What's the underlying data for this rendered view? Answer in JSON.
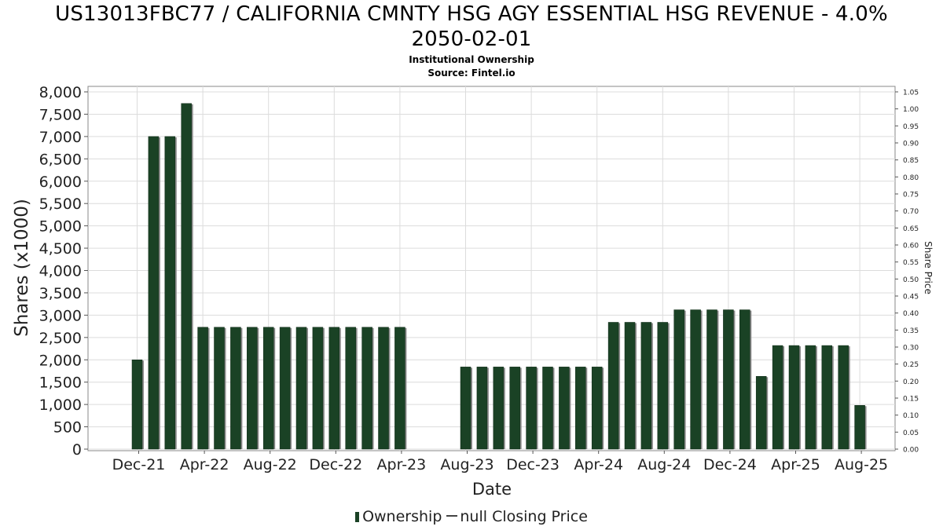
{
  "title_line1": "US13013FBC77 / CALIFORNIA CMNTY HSG AGY ESSENTIAL HSG REVENUE - 4.0%",
  "title_line2": "2050-02-01",
  "subtitle": "Institutional Ownership",
  "source": "Source: Fintel.io",
  "legend": {
    "ownership": "Ownership",
    "closing_price": "null Closing Price"
  },
  "colors": {
    "bar": "#1a4225",
    "bar_shadow": "#8c8c8c",
    "grid": "#dcdcdc"
  },
  "chart_data": {
    "type": "bar",
    "xlabel": "Date",
    "ylabel": "Shares (x1000)",
    "y2label": "Share Price",
    "ylim": [
      0,
      8000
    ],
    "y_ticks": [
      "0",
      "500",
      "1,000",
      "1,500",
      "2,000",
      "2,500",
      "3,000",
      "3,500",
      "4,000",
      "4,500",
      "5,000",
      "5,500",
      "6,000",
      "6,500",
      "7,000",
      "7,500",
      "8,000"
    ],
    "y2lim": [
      0,
      1.05
    ],
    "y2_ticks": [
      "0.00",
      "0.05",
      "0.10",
      "0.15",
      "0.20",
      "0.25",
      "0.30",
      "0.35",
      "0.40",
      "0.45",
      "0.50",
      "0.55",
      "0.60",
      "0.65",
      "0.70",
      "0.75",
      "0.80",
      "0.85",
      "0.90",
      "0.95",
      "1.00",
      "1.05"
    ],
    "x_ticks": [
      "Dec-21",
      "Apr-22",
      "Aug-22",
      "Dec-22",
      "Apr-23",
      "Aug-23",
      "Dec-23",
      "Apr-24",
      "Aug-24",
      "Dec-24",
      "Apr-25",
      "Aug-25"
    ],
    "grid": true,
    "legend_position": "bottom",
    "series": [
      {
        "name": "Ownership",
        "x": [
          "2021-12",
          "2022-01",
          "2022-02",
          "2022-03",
          "2022-04",
          "2022-05",
          "2022-06",
          "2022-07",
          "2022-08",
          "2022-09",
          "2022-10",
          "2022-11",
          "2022-12",
          "2023-01",
          "2023-02",
          "2023-03",
          "2023-04",
          "2023-05",
          "2023-06",
          "2023-07",
          "2023-08",
          "2023-09",
          "2023-10",
          "2023-11",
          "2023-12",
          "2024-01",
          "2024-02",
          "2024-03",
          "2024-04",
          "2024-05",
          "2024-06",
          "2024-07",
          "2024-08",
          "2024-09",
          "2024-10",
          "2024-11",
          "2024-12",
          "2025-01",
          "2025-02",
          "2025-03",
          "2025-04",
          "2025-05",
          "2025-06",
          "2025-07",
          "2025-08"
        ],
        "values": [
          2000,
          7000,
          7000,
          7740,
          2730,
          2730,
          2730,
          2730,
          2730,
          2730,
          2730,
          2730,
          2730,
          2730,
          2730,
          2730,
          2730,
          0,
          0,
          0,
          1840,
          1840,
          1840,
          1840,
          1840,
          1840,
          1840,
          1840,
          1840,
          2840,
          2840,
          2840,
          2840,
          3120,
          3120,
          3120,
          3120,
          3120,
          1630,
          2320,
          2320,
          2320,
          2320,
          2320,
          980
        ]
      },
      {
        "name": "null Closing Price",
        "values": []
      }
    ]
  }
}
